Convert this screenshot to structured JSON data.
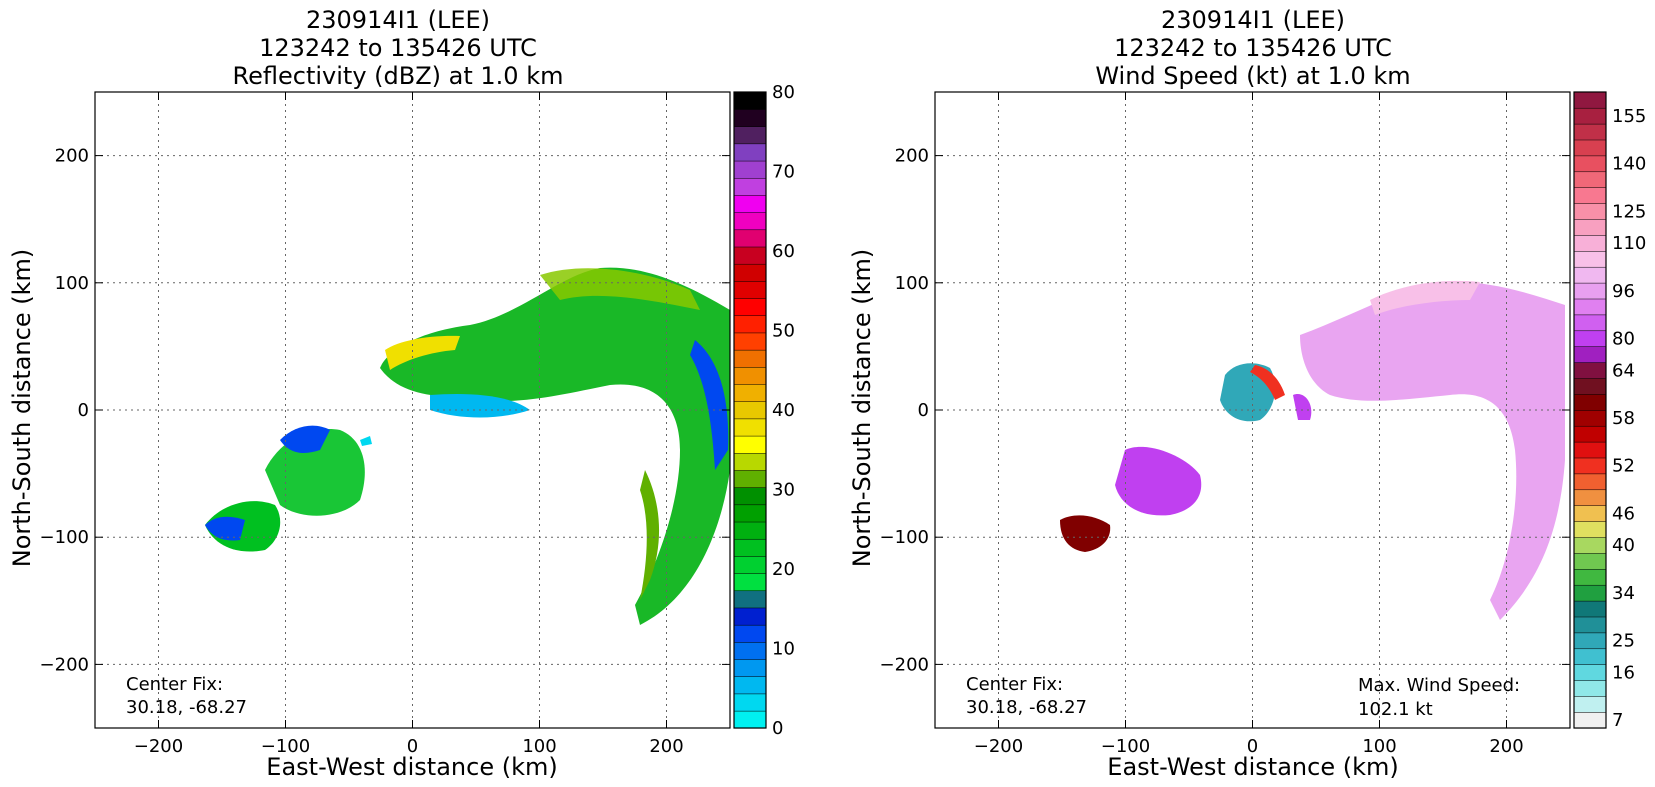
{
  "chart_data": [
    {
      "type": "heatmap",
      "title_lines": [
        "230914I1 (LEE)",
        "123242 to 135426 UTC",
        "Reflectivity (dBZ) at 1.0 km"
      ],
      "xlabel": "East-West distance (km)",
      "ylabel": "North-South distance (km)",
      "xlim": [
        -250,
        250
      ],
      "ylim": [
        -250,
        250
      ],
      "xticks": [
        -200,
        -100,
        0,
        100,
        200
      ],
      "yticks": [
        -200,
        -100,
        0,
        100,
        200
      ],
      "grid": true,
      "colorbar": {
        "label": "dBZ",
        "tick_values": [
          0,
          10,
          20,
          30,
          40,
          50,
          60,
          70,
          80
        ],
        "colors": [
          "#00f0f0",
          "#00d8f0",
          "#00b8f0",
          "#0098f0",
          "#0070f0",
          "#0048f0",
          "#0020d0",
          "#107080",
          "#00e040",
          "#00d030",
          "#00c020",
          "#00b010",
          "#00a000",
          "#009000",
          "#60b000",
          "#b8d800",
          "#ffff00",
          "#f0e000",
          "#e8c800",
          "#f0b000",
          "#f09000",
          "#f07000",
          "#ff4000",
          "#ff2000",
          "#ff0000",
          "#e00000",
          "#d00000",
          "#c80020",
          "#e00070",
          "#f000c0",
          "#f000f0",
          "#c040e0",
          "#a040d0",
          "#8040c0",
          "#502060",
          "#200020",
          "#000000"
        ]
      },
      "annotations": [
        {
          "label": "Center Fix:",
          "value": "30.18, -68.27"
        }
      ]
    },
    {
      "type": "heatmap",
      "title_lines": [
        "230914I1 (LEE)",
        "123242 to 135426 UTC",
        "Wind Speed (kt) at 1.0 km"
      ],
      "xlabel": "East-West distance (km)",
      "ylabel": "North-South distance (km)",
      "xlim": [
        -250,
        250
      ],
      "ylim": [
        -250,
        250
      ],
      "xticks": [
        -200,
        -100,
        0,
        100,
        200
      ],
      "yticks": [
        -200,
        -100,
        0,
        100,
        200
      ],
      "grid": true,
      "colorbar": {
        "label": "kt",
        "tick_labels": [
          "7",
          "16",
          "25",
          "34",
          "40",
          "46",
          "52",
          "58",
          "64",
          "80",
          "96",
          "110",
          "125",
          "140",
          "155"
        ],
        "colors": [
          "#f0f0f0",
          "#c0f0f0",
          "#90e8e8",
          "#60d8e0",
          "#40c0d0",
          "#30a8b8",
          "#209098",
          "#107878",
          "#20a040",
          "#40b840",
          "#70c850",
          "#a8d860",
          "#e0e060",
          "#f0c050",
          "#f09040",
          "#f06030",
          "#f03020",
          "#e01010",
          "#c00000",
          "#a00000",
          "#800000",
          "#701020",
          "#801040",
          "#a020c0",
          "#c040f0",
          "#d060f0",
          "#e080f0",
          "#e8a0f0",
          "#f0b8f0",
          "#f8c0e8",
          "#f8b0d8",
          "#f8a0c0",
          "#f890a8",
          "#f87890",
          "#f06878",
          "#e85060",
          "#d84050",
          "#c03048",
          "#a82040",
          "#901840"
        ]
      },
      "annotations": [
        {
          "label": "Center Fix:",
          "value": "30.18, -68.27"
        },
        {
          "label": "Max. Wind Speed:",
          "value": "102.1 kt"
        }
      ]
    }
  ]
}
